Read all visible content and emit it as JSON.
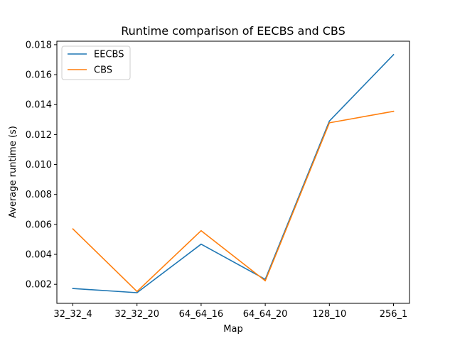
{
  "chart_data": {
    "type": "line",
    "title": "Runtime comparison of EECBS and CBS",
    "xlabel": "Map",
    "ylabel": "Average runtime (s)",
    "categories": [
      "32_32_4",
      "32_32_20",
      "64_64_16",
      "64_64_20",
      "128_10",
      "256_1"
    ],
    "series": [
      {
        "name": "EECBS",
        "color": "#1f77b4",
        "values": [
          0.00172,
          0.00144,
          0.00468,
          0.00233,
          0.0129,
          0.01733
        ]
      },
      {
        "name": "CBS",
        "color": "#ff7f0e",
        "values": [
          0.0057,
          0.00152,
          0.00558,
          0.00223,
          0.01278,
          0.01355
        ]
      }
    ],
    "yticks": [
      0.002,
      0.004,
      0.006,
      0.008,
      0.01,
      0.012,
      0.014,
      0.016,
      0.018
    ],
    "ytick_labels": [
      "0.002",
      "0.004",
      "0.006",
      "0.008",
      "0.010",
      "0.012",
      "0.014",
      "0.016",
      "0.018"
    ],
    "ylim": [
      0.000728,
      0.018233
    ],
    "grid": false,
    "legend_position": "upper-left"
  }
}
